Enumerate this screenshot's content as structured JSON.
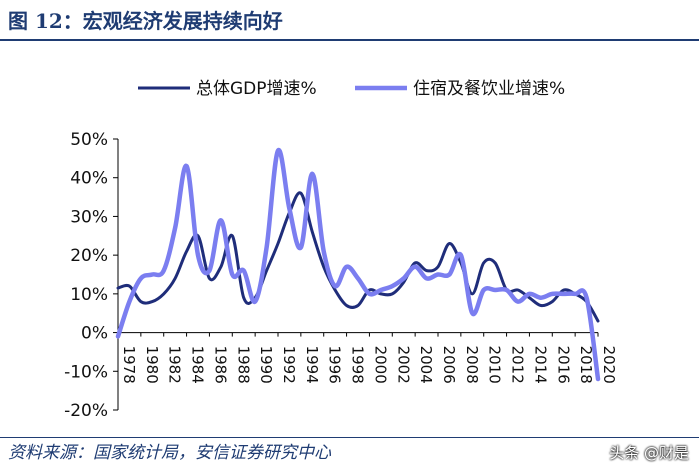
{
  "figure": {
    "title": "图 12：宏观经济发展持续向好",
    "source": "资料来源：国家统计局，安信证券研究中心",
    "watermark": "头条 @财是"
  },
  "colors": {
    "gdp": "#1f2d7a",
    "hospitality": "#7b7ef0",
    "axis": "#1f3c73"
  },
  "chart_data": {
    "type": "line",
    "title": "",
    "xlabel": "",
    "ylabel": "",
    "ylim": [
      -20,
      50
    ],
    "ytick_values": [
      -20,
      -10,
      0,
      10,
      20,
      30,
      40,
      50
    ],
    "ytick_labels": [
      "-20%",
      "-10%",
      "0%",
      "10%",
      "20%",
      "30%",
      "40%",
      "50%"
    ],
    "xtick_labels": [
      "1978",
      "1980",
      "1982",
      "1984",
      "1986",
      "1988",
      "1990",
      "1992",
      "1994",
      "1996",
      "1998",
      "2000",
      "2002",
      "2004",
      "2006",
      "2008",
      "2010",
      "2012",
      "2014",
      "2016",
      "2018",
      "2020"
    ],
    "x": [
      1978,
      1979,
      1980,
      1981,
      1982,
      1983,
      1984,
      1985,
      1986,
      1987,
      1988,
      1989,
      1990,
      1991,
      1992,
      1993,
      1994,
      1995,
      1996,
      1997,
      1998,
      1999,
      2000,
      2001,
      2002,
      2003,
      2004,
      2005,
      2006,
      2007,
      2008,
      2009,
      2010,
      2011,
      2012,
      2013,
      2014,
      2015,
      2016,
      2017,
      2018,
      2019,
      2020
    ],
    "legend_position": "top",
    "series": [
      {
        "name": "总体GDP增速%",
        "color_key": "gdp",
        "values": [
          11.5,
          12,
          8,
          8,
          10,
          14,
          21,
          25,
          14,
          17,
          25,
          9,
          9,
          16,
          23,
          31,
          36,
          26,
          17,
          11,
          7,
          7,
          11,
          10,
          10,
          13,
          18,
          16,
          17,
          23,
          18,
          10,
          18,
          18,
          11,
          11,
          9,
          7,
          8,
          11,
          10,
          8,
          3
        ]
      },
      {
        "name": "住宿及餐饮业增速%",
        "color_key": "hospitality",
        "values": [
          -1,
          8,
          14,
          15,
          16,
          27,
          43,
          20,
          16,
          29,
          15,
          16,
          8,
          22,
          47,
          32,
          22,
          41,
          21,
          12,
          17,
          14,
          10,
          11,
          12,
          14,
          17,
          14,
          15,
          15,
          20,
          5,
          11,
          11,
          11,
          8,
          10,
          9,
          10,
          10,
          10,
          9,
          -12
        ]
      }
    ]
  }
}
